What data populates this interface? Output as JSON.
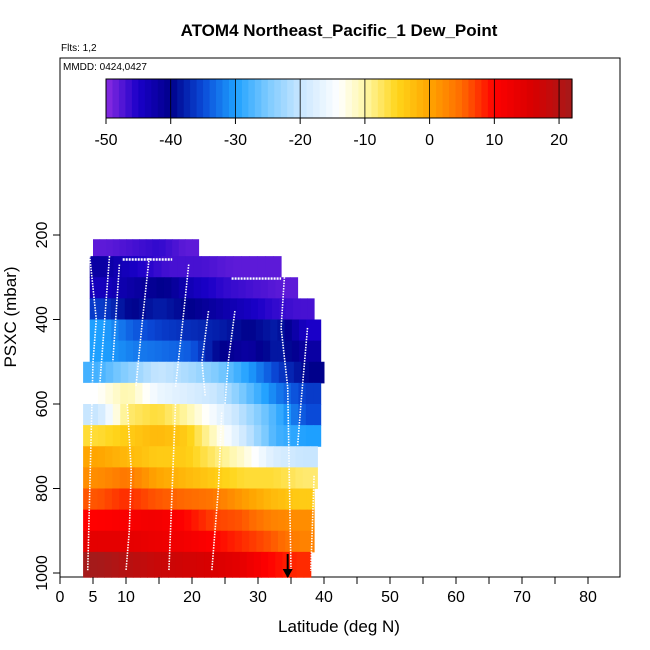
{
  "chart_data": {
    "type": "heatmap",
    "title": "ATOM4 Northeast_Pacific_1 Dew_Point",
    "flights_label": "Flts: 1,2",
    "dates_label": "MMDD: 0424,0427",
    "xlabel": "Latitude (deg N)",
    "ylabel": "PSXC (mbar)",
    "xlim": [
      0,
      85
    ],
    "ylim": [
      1010,
      50
    ],
    "y_reversed": true,
    "x_ticks": [
      "0",
      "5",
      "10",
      "20",
      "30",
      "40",
      "50",
      "60",
      "70",
      "80"
    ],
    "y_ticks": [
      "200",
      "400",
      "600",
      "800",
      "1000"
    ],
    "colorbar": {
      "range": [
        -50,
        22
      ],
      "tick_labels": [
        "-50",
        "-40",
        "-30",
        "-20",
        "-10",
        "0",
        "10",
        "20"
      ],
      "stops": [
        {
          "value": -50,
          "color": "#8a2be2"
        },
        {
          "value": -45,
          "color": "#1a00c8"
        },
        {
          "value": -40,
          "color": "#00008b"
        },
        {
          "value": -35,
          "color": "#0a4ad8"
        },
        {
          "value": -30,
          "color": "#1ea0ff"
        },
        {
          "value": -25,
          "color": "#7ccaff"
        },
        {
          "value": -20,
          "color": "#c8e6ff"
        },
        {
          "value": -14,
          "color": "#ffffff"
        },
        {
          "value": -10,
          "color": "#fff7a8"
        },
        {
          "value": -5,
          "color": "#ffd51a"
        },
        {
          "value": 0,
          "color": "#ffa500"
        },
        {
          "value": 5,
          "color": "#ff6a00"
        },
        {
          "value": 10,
          "color": "#ff0000"
        },
        {
          "value": 16,
          "color": "#d80000"
        },
        {
          "value": 22,
          "color": "#a51a1a"
        }
      ]
    },
    "pressure_bands": [
      {
        "p_top": 210,
        "p_bot": 250,
        "lat_min": 5,
        "lat_max": 21,
        "dewpoint": [
          -48,
          -47,
          -46,
          -48
        ]
      },
      {
        "p_top": 250,
        "p_bot": 300,
        "lat_min": 4.5,
        "lat_max": 33.5,
        "dewpoint": [
          -42,
          -45,
          -47,
          -47,
          -48,
          -48
        ]
      },
      {
        "p_top": 300,
        "p_bot": 350,
        "lat_min": 4.5,
        "lat_max": 36,
        "dewpoint": [
          -44,
          -42,
          -40,
          -44,
          -46,
          -47,
          -48
        ]
      },
      {
        "p_top": 350,
        "p_bot": 400,
        "lat_min": 4.5,
        "lat_max": 38.5,
        "dewpoint": [
          -36,
          -40,
          -38,
          -40,
          -42,
          -44,
          -46,
          -47
        ]
      },
      {
        "p_top": 400,
        "p_bot": 450,
        "lat_min": 4.5,
        "lat_max": 39.5,
        "dewpoint": [
          -30,
          -34,
          -36,
          -37,
          -38,
          -40,
          -38,
          -45
        ]
      },
      {
        "p_top": 450,
        "p_bot": 500,
        "lat_min": 4.5,
        "lat_max": 39.5,
        "dewpoint": [
          -30,
          -32,
          -33,
          -34,
          -40,
          -42,
          -38,
          -42
        ]
      },
      {
        "p_top": 500,
        "p_bot": 550,
        "lat_min": 3.5,
        "lat_max": 40,
        "dewpoint": [
          -28,
          -24,
          -20,
          -22,
          -25,
          -30,
          -36,
          -40
        ]
      },
      {
        "p_top": 550,
        "p_bot": 600,
        "lat_min": 3.5,
        "lat_max": 39.5,
        "dewpoint": [
          -14,
          -10,
          -16,
          -18,
          -20,
          -26,
          -32,
          -36
        ]
      },
      {
        "p_top": 600,
        "p_bot": 650,
        "lat_min": 3.5,
        "lat_max": 39.5,
        "dewpoint": [
          -20,
          -8,
          -6,
          -10,
          -16,
          -22,
          -28,
          -35
        ]
      },
      {
        "p_top": 650,
        "p_bot": 700,
        "lat_min": 3.5,
        "lat_max": 39.5,
        "dewpoint": [
          -6,
          -4,
          -2,
          -4,
          -12,
          -20,
          -28,
          -30
        ]
      },
      {
        "p_top": 700,
        "p_bot": 750,
        "lat_min": 3.5,
        "lat_max": 39,
        "dewpoint": [
          0,
          -2,
          -4,
          -4,
          -8,
          -12,
          -18,
          -20
        ]
      },
      {
        "p_top": 750,
        "p_bot": 800,
        "lat_min": 3.5,
        "lat_max": 39,
        "dewpoint": [
          2,
          4,
          0,
          -2,
          -4,
          -6,
          -6,
          -8
        ]
      },
      {
        "p_top": 800,
        "p_bot": 850,
        "lat_min": 3.5,
        "lat_max": 38.5,
        "dewpoint": [
          6,
          8,
          6,
          5,
          4,
          1,
          -2,
          -4
        ]
      },
      {
        "p_top": 850,
        "p_bot": 900,
        "lat_min": 3.5,
        "lat_max": 38.5,
        "dewpoint": [
          10,
          11,
          12,
          10,
          7,
          6,
          3,
          2
        ]
      },
      {
        "p_top": 900,
        "p_bot": 950,
        "lat_min": 3.5,
        "lat_max": 38.5,
        "dewpoint": [
          14,
          14,
          13,
          12,
          10,
          8,
          6,
          3
        ]
      },
      {
        "p_top": 950,
        "p_bot": 1010,
        "lat_min": 3.5,
        "lat_max": 38,
        "dewpoint": [
          22,
          20,
          18,
          17,
          16,
          14,
          10,
          8
        ]
      }
    ],
    "flight_track": {
      "p": [
        250,
        995
      ],
      "lat": [
        5,
        7.5
      ]
    },
    "tracks": [
      {
        "lat": [
          4.5,
          5.5,
          5.0,
          4.2
        ],
        "p": [
          250,
          400,
          500,
          995
        ]
      },
      {
        "lat": [
          7.5,
          6.0
        ],
        "p": [
          250,
          560
        ]
      },
      {
        "lat": [
          10.2,
          10.8,
          10.5,
          10.0
        ],
        "p": [
          600,
          760,
          900,
          995
        ]
      },
      {
        "lat": [
          9.0,
          8.0
        ],
        "p": [
          270,
          500
        ]
      },
      {
        "lat": [
          13.5,
          12.5,
          11.5
        ],
        "p": [
          255,
          400,
          560
        ]
      },
      {
        "lat": [
          17.5,
          17.0,
          16.5
        ],
        "p": [
          600,
          800,
          995
        ]
      },
      {
        "lat": [
          19.5,
          18.5,
          17.5
        ],
        "p": [
          270,
          420,
          560
        ]
      },
      {
        "lat": [
          24.5,
          24.0,
          23.0
        ],
        "p": [
          620,
          800,
          995
        ]
      },
      {
        "lat": [
          26.5,
          25.5,
          25.0
        ],
        "p": [
          380,
          500,
          600
        ]
      },
      {
        "lat": [
          22.5,
          21.5,
          22.0
        ],
        "p": [
          380,
          500,
          580
        ]
      },
      {
        "lat": [
          34.0,
          33.5,
          34.5,
          35.0
        ],
        "p": [
          300,
          420,
          560,
          995
        ]
      },
      {
        "lat": [
          37.5,
          36.5,
          36.0
        ],
        "p": [
          420,
          600,
          700
        ]
      },
      {
        "lat": [
          38.5,
          38.0
        ],
        "p": [
          770,
          995
        ]
      }
    ],
    "horizontal_tracks": [
      {
        "lat": [
          9.5,
          17.0
        ],
        "p": 258
      },
      {
        "lat": [
          26.0,
          33.5
        ],
        "p": 303
      }
    ],
    "marker_arrow": {
      "lat": 34.5,
      "p_from": 955,
      "p_to": 1000
    }
  }
}
